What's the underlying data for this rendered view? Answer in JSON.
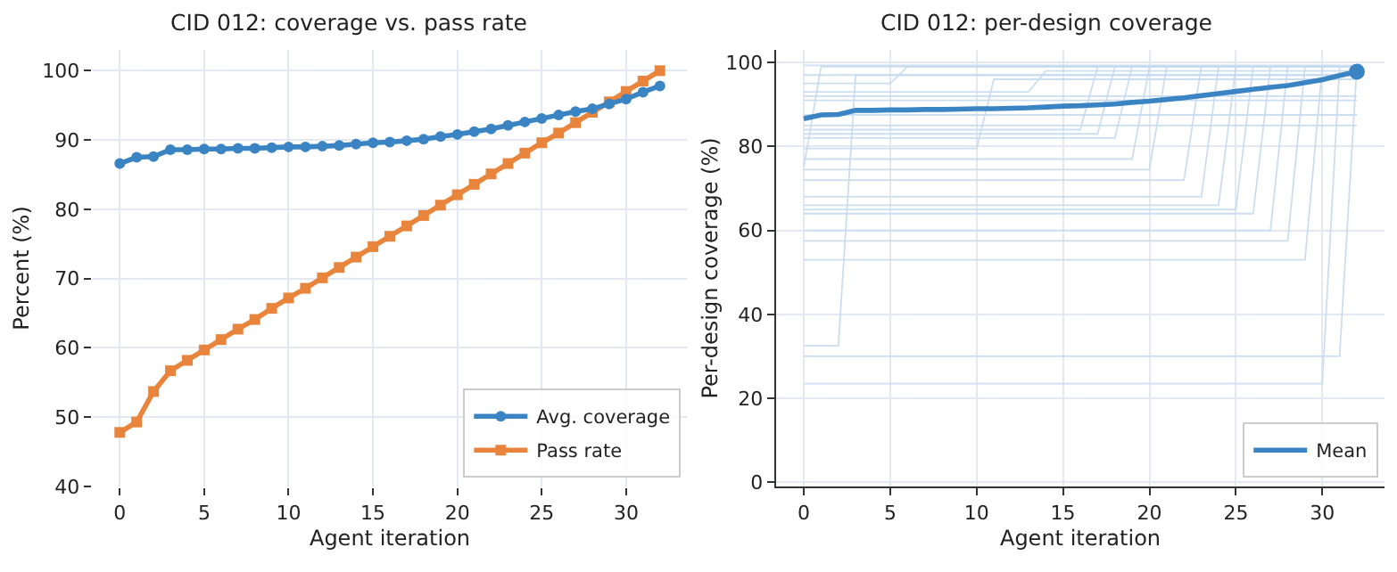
{
  "chart_data": [
    {
      "type": "line",
      "title": "CID 012: coverage vs. pass rate",
      "xlabel": "Agent iteration",
      "ylabel": "Percent (%)",
      "x": [
        0,
        1,
        2,
        3,
        4,
        5,
        6,
        7,
        8,
        9,
        10,
        11,
        12,
        13,
        14,
        15,
        16,
        17,
        18,
        19,
        20,
        21,
        22,
        23,
        24,
        25,
        26,
        27,
        28,
        29,
        30,
        31,
        32
      ],
      "xlim": [
        -1.6,
        33.6
      ],
      "xticks": [
        0,
        5,
        10,
        15,
        20,
        25,
        30
      ],
      "ylim": [
        40,
        103
      ],
      "yticks": [
        40,
        50,
        60,
        70,
        80,
        90,
        100
      ],
      "grid": true,
      "legend": "bottom right",
      "series": [
        {
          "name": "Avg. coverage",
          "color": "#3a84c4",
          "marker": "circle",
          "values": [
            86.6,
            87.5,
            87.6,
            88.6,
            88.6,
            88.7,
            88.7,
            88.8,
            88.8,
            88.9,
            89.0,
            89.0,
            89.1,
            89.2,
            89.4,
            89.6,
            89.7,
            89.9,
            90.1,
            90.5,
            90.8,
            91.2,
            91.6,
            92.1,
            92.6,
            93.1,
            93.6,
            94.1,
            94.5,
            95.2,
            95.9,
            96.9,
            97.8
          ]
        },
        {
          "name": "Pass rate",
          "color": "#e8843c",
          "marker": "square",
          "values": [
            47.8,
            49.3,
            53.7,
            56.7,
            58.2,
            59.7,
            61.2,
            62.7,
            64.1,
            65.7,
            67.2,
            68.6,
            70.1,
            71.6,
            73.1,
            74.6,
            76.1,
            77.6,
            79.1,
            80.6,
            82.1,
            83.6,
            85.1,
            86.6,
            88.1,
            89.6,
            91.0,
            92.5,
            94.0,
            95.5,
            97.0,
            98.5,
            100
          ]
        }
      ]
    },
    {
      "type": "line",
      "title": "CID 012: per-design coverage",
      "xlabel": "Agent iteration",
      "ylabel": "Per-design coverage (%)",
      "xlim": [
        -1.6,
        33.6
      ],
      "xticks": [
        0,
        5,
        10,
        15,
        20,
        25,
        30
      ],
      "ylim": [
        -1,
        103
      ],
      "yticks": [
        0,
        20,
        40,
        60,
        80,
        100
      ],
      "grid": true,
      "legend": "bottom right",
      "series": [
        {
          "color": "#c6dbef",
          "x": [
            0,
            2,
            3,
            32
          ],
          "values": [
            32.5,
            32.5,
            97,
            97
          ]
        },
        {
          "color": "#c6dbef",
          "x": [
            0,
            31,
            32
          ],
          "values": [
            30,
            30,
            99
          ]
        },
        {
          "color": "#c6dbef",
          "x": [
            0,
            30,
            31,
            32
          ],
          "values": [
            23.5,
            23.5,
            99,
            99
          ]
        },
        {
          "color": "#c6dbef",
          "x": [
            0,
            29,
            30,
            32
          ],
          "values": [
            53,
            53,
            99,
            99
          ]
        },
        {
          "color": "#c6dbef",
          "x": [
            0,
            28,
            29,
            32
          ],
          "values": [
            57.5,
            57.5,
            99,
            99
          ]
        },
        {
          "color": "#c6dbef",
          "x": [
            0,
            27,
            28,
            32
          ],
          "values": [
            60,
            60,
            99,
            99
          ]
        },
        {
          "color": "#c6dbef",
          "x": [
            0,
            26,
            27,
            32
          ],
          "values": [
            64,
            64,
            99,
            99
          ]
        },
        {
          "color": "#c6dbef",
          "x": [
            0,
            25,
            26,
            32
          ],
          "values": [
            65,
            65,
            99,
            99
          ]
        },
        {
          "color": "#c6dbef",
          "x": [
            0,
            24,
            25,
            32
          ],
          "values": [
            66,
            66,
            99,
            99
          ]
        },
        {
          "color": "#c6dbef",
          "x": [
            0,
            23,
            24,
            32
          ],
          "values": [
            68,
            68,
            99,
            99
          ]
        },
        {
          "color": "#c6dbef",
          "x": [
            0,
            22,
            23,
            32
          ],
          "values": [
            72,
            72,
            99,
            99
          ]
        },
        {
          "color": "#c6dbef",
          "x": [
            0,
            20,
            21,
            32
          ],
          "values": [
            74.5,
            74.5,
            99,
            99
          ]
        },
        {
          "color": "#c6dbef",
          "x": [
            0,
            19,
            20,
            32
          ],
          "values": [
            77,
            77,
            99,
            99
          ]
        },
        {
          "color": "#c6dbef",
          "x": [
            0,
            10,
            11,
            32
          ],
          "values": [
            79.5,
            79.5,
            96,
            96
          ]
        },
        {
          "color": "#c6dbef",
          "x": [
            0,
            18,
            19,
            32
          ],
          "values": [
            82,
            82,
            99,
            99
          ]
        },
        {
          "color": "#c6dbef",
          "x": [
            0,
            17,
            18,
            32
          ],
          "values": [
            83,
            83,
            99,
            99
          ]
        },
        {
          "color": "#c6dbef",
          "x": [
            0,
            16,
            17,
            32
          ],
          "values": [
            84,
            84,
            99,
            99
          ]
        },
        {
          "color": "#c6dbef",
          "x": [
            0,
            32
          ],
          "values": [
            85,
            85
          ]
        },
        {
          "color": "#c6dbef",
          "x": [
            0,
            32
          ],
          "values": [
            87.5,
            87.5
          ]
        },
        {
          "color": "#c6dbef",
          "x": [
            0,
            1,
            32
          ],
          "values": [
            75,
            99,
            99
          ]
        },
        {
          "color": "#c6dbef",
          "x": [
            0,
            32
          ],
          "values": [
            91,
            91
          ]
        },
        {
          "color": "#c6dbef",
          "x": [
            0,
            32
          ],
          "values": [
            92,
            92
          ]
        },
        {
          "color": "#c6dbef",
          "x": [
            0,
            13,
            14,
            32
          ],
          "values": [
            93,
            93,
            98,
            98
          ]
        },
        {
          "color": "#c6dbef",
          "x": [
            0,
            5,
            6,
            32
          ],
          "values": [
            95,
            95,
            99,
            99
          ]
        },
        {
          "color": "#c6dbef",
          "x": [
            0,
            32
          ],
          "values": [
            97,
            97
          ]
        },
        {
          "color": "#c6dbef",
          "x": [
            0,
            32
          ],
          "values": [
            99.3,
            99.3
          ]
        },
        {
          "name": "Mean",
          "color": "#3a84c4",
          "marker": "none",
          "x": [
            0,
            1,
            2,
            3,
            4,
            5,
            6,
            7,
            8,
            9,
            10,
            11,
            12,
            13,
            14,
            15,
            16,
            17,
            18,
            19,
            20,
            21,
            22,
            23,
            24,
            25,
            26,
            27,
            28,
            29,
            30,
            31,
            32
          ],
          "values": [
            86.6,
            87.5,
            87.6,
            88.6,
            88.6,
            88.7,
            88.7,
            88.8,
            88.8,
            88.9,
            89.0,
            89.0,
            89.1,
            89.2,
            89.4,
            89.6,
            89.7,
            89.9,
            90.1,
            90.5,
            90.8,
            91.2,
            91.6,
            92.1,
            92.6,
            93.1,
            93.6,
            94.1,
            94.5,
            95.2,
            95.9,
            96.9,
            97.8
          ]
        },
        {
          "type": "scatter",
          "color": "#3a84c4",
          "marker": "circle",
          "x": [
            32
          ],
          "values": [
            97.8
          ]
        }
      ]
    }
  ]
}
